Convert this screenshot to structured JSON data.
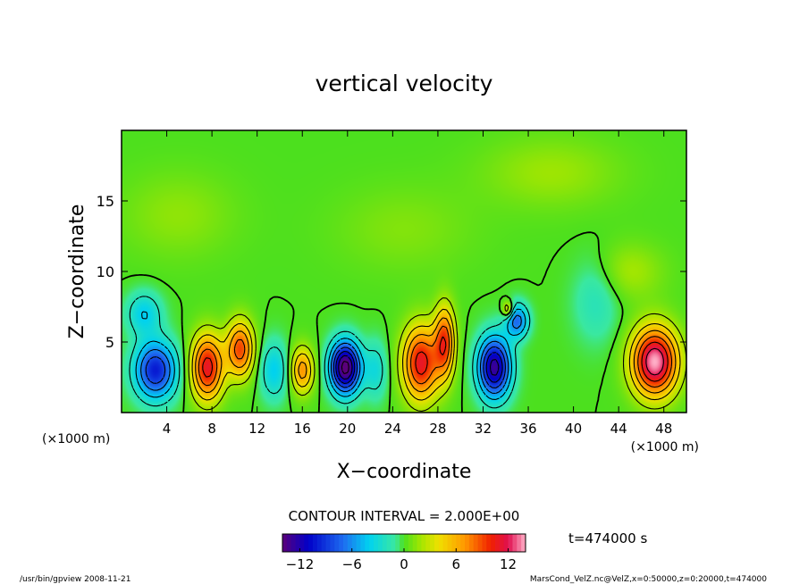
{
  "chart_data": {
    "type": "heatmap",
    "title": "vertical velocity",
    "xlabel": "X−coordinate",
    "ylabel": "Z−coordinate",
    "x_unit_left": "(×1000 m)",
    "x_unit_right": "(×1000 m)",
    "xlim": [
      0,
      50
    ],
    "ylim": [
      0,
      20
    ],
    "x_ticks": [
      {
        "value": 4,
        "label": "4"
      },
      {
        "value": 8,
        "label": "8"
      },
      {
        "value": 12,
        "label": "12"
      },
      {
        "value": 16,
        "label": "16"
      },
      {
        "value": 20,
        "label": "20"
      },
      {
        "value": 24,
        "label": "24"
      },
      {
        "value": 28,
        "label": "28"
      },
      {
        "value": 32,
        "label": "32"
      },
      {
        "value": 36,
        "label": "36"
      },
      {
        "value": 40,
        "label": "40"
      },
      {
        "value": 44,
        "label": "44"
      },
      {
        "value": 48,
        "label": "48"
      }
    ],
    "y_ticks": [
      {
        "value": 5,
        "label": "5"
      },
      {
        "value": 10,
        "label": "10"
      },
      {
        "value": 15,
        "label": "15"
      }
    ],
    "contour_interval_text": "CONTOUR INTERVAL = 2.000E+00",
    "time_text": "t=474000 s",
    "colorbar": {
      "range": [
        -14,
        14
      ],
      "ticks": [
        {
          "value": -12,
          "label": "−12"
        },
        {
          "value": -6,
          "label": "−6"
        },
        {
          "value": 0,
          "label": "0"
        },
        {
          "value": 6,
          "label": "6"
        },
        {
          "value": 12,
          "label": "12"
        }
      ],
      "stops": [
        {
          "value": -14,
          "color": "#5a007a"
        },
        {
          "value": -11,
          "color": "#0000c8"
        },
        {
          "value": -7,
          "color": "#1e6cf0"
        },
        {
          "value": -4,
          "color": "#00d2f0"
        },
        {
          "value": -1,
          "color": "#3ae8a0"
        },
        {
          "value": 0,
          "color": "#4ce01e"
        },
        {
          "value": 2,
          "color": "#a6e600"
        },
        {
          "value": 4,
          "color": "#f0e000"
        },
        {
          "value": 7,
          "color": "#ff9800"
        },
        {
          "value": 10,
          "color": "#f02000"
        },
        {
          "value": 12,
          "color": "#e01050"
        },
        {
          "value": 14,
          "color": "#ffb0c8"
        }
      ]
    },
    "features": [
      {
        "x": 3,
        "z": 3,
        "w": -10,
        "sx": 1.8,
        "sz": 2.0
      },
      {
        "x": 7.6,
        "z": 3.2,
        "w": 11,
        "sx": 1.4,
        "sz": 2.3
      },
      {
        "x": 10.5,
        "z": 4.5,
        "w": 9,
        "sx": 1.2,
        "sz": 2.0
      },
      {
        "x": 13.5,
        "z": 3,
        "w": -4,
        "sx": 1.2,
        "sz": 2.0
      },
      {
        "x": 16,
        "z": 3,
        "w": 7,
        "sx": 1.0,
        "sz": 1.6
      },
      {
        "x": 19.8,
        "z": 3.2,
        "w": -15,
        "sx": 1.3,
        "sz": 1.8
      },
      {
        "x": 22.5,
        "z": 3,
        "w": -3,
        "sx": 1.0,
        "sz": 2.0
      },
      {
        "x": 26.5,
        "z": 3.5,
        "w": 11,
        "sx": 1.6,
        "sz": 2.6
      },
      {
        "x": 28.6,
        "z": 5,
        "w": 9,
        "sx": 0.9,
        "sz": 2.5
      },
      {
        "x": 33,
        "z": 3.2,
        "w": -13,
        "sx": 1.4,
        "sz": 2.1
      },
      {
        "x": 35,
        "z": 6.5,
        "w": -7,
        "sx": 1.0,
        "sz": 1.2
      },
      {
        "x": 34.2,
        "z": 7.3,
        "w": 5,
        "sx": 0.5,
        "sz": 0.6
      },
      {
        "x": 42,
        "z": 8,
        "w": -2,
        "sx": 2.0,
        "sz": 3.0
      },
      {
        "x": 47.2,
        "z": 3.6,
        "w": 14,
        "sx": 2.0,
        "sz": 2.4
      },
      {
        "x": 45,
        "z": 10,
        "w": 2,
        "sx": 3.0,
        "sz": 2.0
      },
      {
        "x": 2,
        "z": 7,
        "w": -4,
        "sx": 1.5,
        "sz": 1.5
      },
      {
        "x": 5,
        "z": 14,
        "w": 1.5,
        "sx": 5.0,
        "sz": 3.0
      },
      {
        "x": 25,
        "z": 13,
        "w": 1.2,
        "sx": 6.0,
        "sz": 3.0
      },
      {
        "x": 38,
        "z": 17,
        "w": 1.8,
        "sx": 6.0,
        "sz": 2.5
      }
    ]
  },
  "footer": {
    "left": "/usr/bin/gpview   2008-11-21",
    "right": "MarsCond_VelZ.nc@VelZ,x=0:50000,z=0:20000,t=474000"
  }
}
